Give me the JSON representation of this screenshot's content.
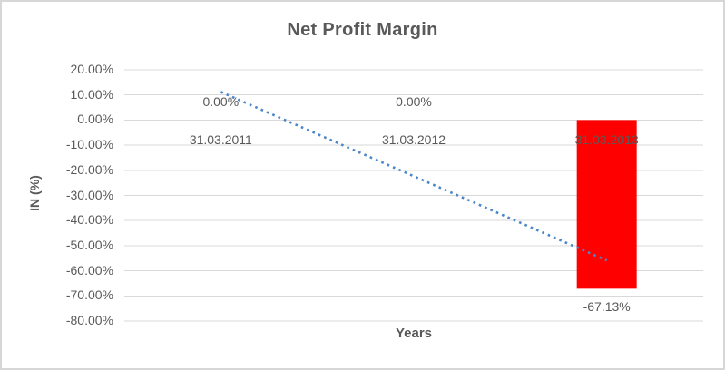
{
  "chart_data": {
    "type": "bar",
    "title": "Net Profit Margin",
    "xlabel": "Years",
    "ylabel": "IN (%)",
    "categories": [
      "31.03.2011",
      "31.03.2012",
      "31.03.2013"
    ],
    "values": [
      0,
      0,
      -67.13
    ],
    "data_labels": [
      "0.00%",
      "0.00%",
      "-67.13%"
    ],
    "ylim": [
      -80,
      20
    ],
    "ytick_step": 10,
    "ytick_labels": [
      "20.00%",
      "10.00%",
      "0.00%",
      "-10.00%",
      "-20.00%",
      "-30.00%",
      "-40.00%",
      "-50.00%",
      "-60.00%",
      "-70.00%",
      "-80.00%"
    ],
    "grid": true,
    "legend": "none",
    "bar_color": "#ff0000",
    "text_color": "#595959",
    "gridline_color": "#d9d9d9",
    "trendline": {
      "type": "linear",
      "style": "dotted",
      "color": "#4a86c8",
      "start_value": 11.2,
      "end_value": -55.9
    }
  }
}
